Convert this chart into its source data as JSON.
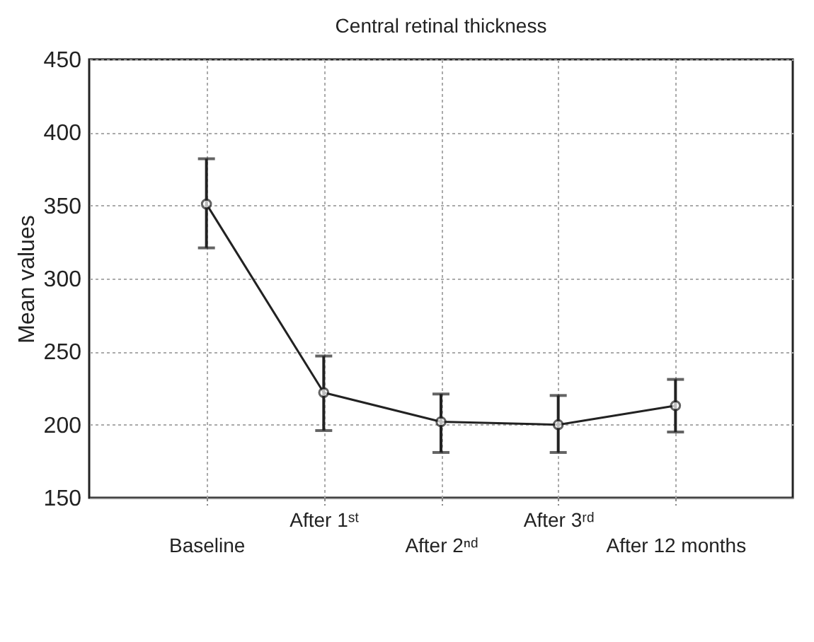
{
  "chart_data": {
    "type": "line",
    "title": "Central retinal thickness",
    "ylabel": "Mean values",
    "categories": [
      "Baseline",
      "After 1ˢᵗ",
      "After 2ⁿᵈ",
      "After 3ʳᵈ",
      "After 12 months"
    ],
    "series": [
      {
        "color": "#222222",
        "values": [
          351,
          222,
          202,
          200,
          213
        ],
        "errors": [
          [
            321,
            382
          ],
          [
            196,
            247
          ],
          [
            181,
            221
          ],
          [
            181,
            220
          ],
          [
            195,
            231
          ]
        ]
      }
    ],
    "ylim": [
      150,
      450
    ],
    "yticks": [
      150,
      200,
      250,
      300,
      350,
      400,
      450
    ],
    "grid": true,
    "marker": "circle",
    "line_style": "solid",
    "legend": false
  }
}
